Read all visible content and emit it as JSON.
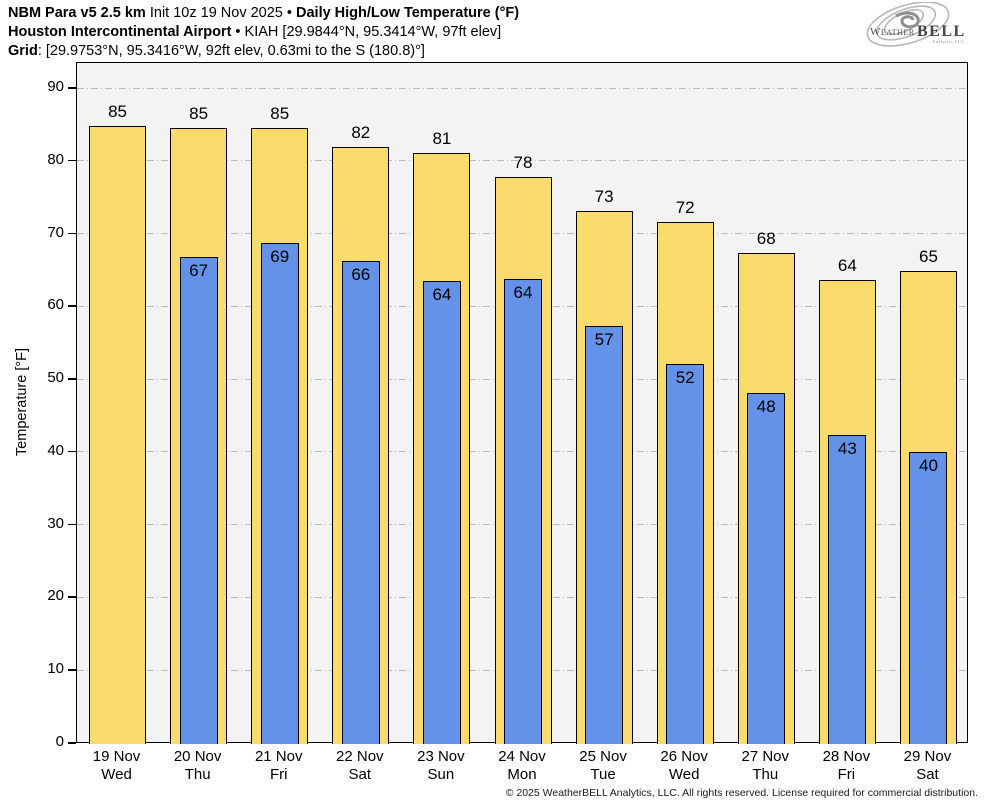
{
  "header": {
    "model": "NBM Para v5 2.5 km",
    "init": " Init 10z 19 Nov 2025 • ",
    "product": "Daily High/Low Temperature (°F)",
    "station": "Houston Intercontinental Airport",
    "station_rest": " • KIAH [29.9844°N, 95.3414°W, 97ft elev]",
    "grid_label": "Grid",
    "grid_rest": ": [29.9753°N, 95.3416°W, 92ft elev, 0.63mi to the S (180.8)°]"
  },
  "logo": {
    "brand_weather": "Weather",
    "brand_bell": "BELL",
    "subtext": "Analytics LLC"
  },
  "footer": {
    "text": "© 2025 WeatherBELL Analytics, LLC. All rights reserved. License required for commercial distribution."
  },
  "colors": {
    "high_fill": "#fbdb6e",
    "low_fill": "#6392e8",
    "plot_bg": "#f3f3f3",
    "gridline": "#bbbbbb",
    "axis": "#000000"
  },
  "chart_data": {
    "type": "bar",
    "title": "Daily High/Low Temperature (°F)",
    "subtitle": "NBM Para v5 2.5 km • Houston Intercontinental Airport (KIAH)",
    "xlabel": "",
    "ylabel": "Temperature [°F]",
    "ylim": [
      0,
      93.6
    ],
    "yticks": [
      0,
      10,
      20,
      30,
      40,
      50,
      60,
      70,
      80,
      90
    ],
    "grid": "horizontal dash-dot",
    "legend_position": "none",
    "categories": [
      {
        "date": "19 Nov",
        "day": "Wed"
      },
      {
        "date": "20 Nov",
        "day": "Thu"
      },
      {
        "date": "21 Nov",
        "day": "Fri"
      },
      {
        "date": "22 Nov",
        "day": "Sat"
      },
      {
        "date": "23 Nov",
        "day": "Sun"
      },
      {
        "date": "24 Nov",
        "day": "Mon"
      },
      {
        "date": "25 Nov",
        "day": "Tue"
      },
      {
        "date": "26 Nov",
        "day": "Wed"
      },
      {
        "date": "27 Nov",
        "day": "Thu"
      },
      {
        "date": "28 Nov",
        "day": "Fri"
      },
      {
        "date": "29 Nov",
        "day": "Sat"
      }
    ],
    "series": [
      {
        "name": "Daily High",
        "color": "#fbdb6e",
        "values": [
          85.0,
          84.6,
          84.6,
          82.1,
          81.2,
          78.0,
          73.2,
          71.7,
          67.5,
          63.8,
          65.0
        ],
        "labels": [
          "85",
          "85",
          "85",
          "82",
          "81",
          "78",
          "73",
          "72",
          "68",
          "64",
          "65"
        ]
      },
      {
        "name": "Daily Low",
        "color": "#6392e8",
        "values": [
          null,
          67.0,
          68.9,
          66.4,
          63.7,
          63.9,
          57.4,
          52.2,
          48.2,
          42.5,
          40.1
        ],
        "labels": [
          null,
          "67",
          "69",
          "66",
          "64",
          "64",
          "57",
          "52",
          "48",
          "43",
          "40"
        ]
      }
    ]
  }
}
